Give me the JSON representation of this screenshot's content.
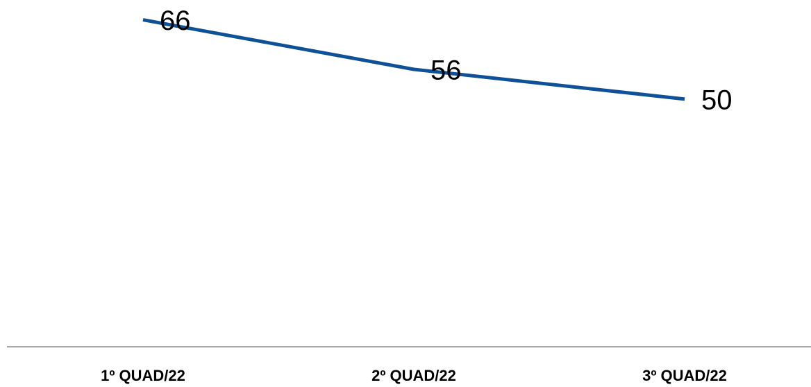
{
  "chart_data": {
    "type": "line",
    "categories": [
      "1º QUAD/22",
      "2º QUAD/22",
      "3º QUAD/22"
    ],
    "values": [
      66,
      56,
      50
    ],
    "color": "#0f5196",
    "ylim": [
      0,
      70
    ],
    "data_labels": true
  }
}
